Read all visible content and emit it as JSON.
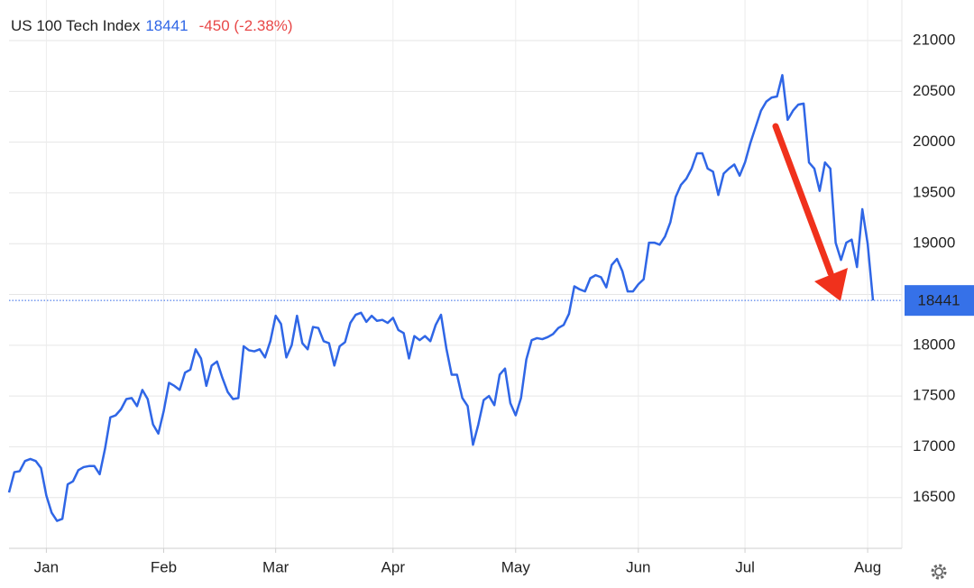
{
  "chart_data": {
    "type": "line",
    "title": "US 100 Tech Index",
    "price": "18441",
    "change": "-450 (-2.38%)",
    "categories": [
      null,
      null,
      null,
      null,
      null,
      null,
      null,
      "Jan",
      null,
      null,
      null,
      null,
      null,
      null,
      null,
      null,
      null,
      null,
      null,
      null,
      null,
      null,
      null,
      null,
      null,
      null,
      null,
      null,
      null,
      "Feb",
      null,
      null,
      null,
      null,
      null,
      null,
      null,
      null,
      null,
      null,
      null,
      null,
      null,
      null,
      null,
      null,
      null,
      null,
      null,
      null,
      "Mar",
      null,
      null,
      null,
      null,
      null,
      null,
      null,
      null,
      null,
      null,
      null,
      null,
      null,
      null,
      null,
      null,
      null,
      null,
      null,
      null,
      null,
      "Apr",
      null,
      null,
      null,
      null,
      null,
      null,
      null,
      null,
      null,
      null,
      null,
      null,
      null,
      null,
      null,
      null,
      null,
      null,
      null,
      null,
      null,
      null,
      "May",
      null,
      null,
      null,
      null,
      null,
      null,
      null,
      null,
      null,
      null,
      null,
      null,
      null,
      null,
      null,
      null,
      null,
      null,
      null,
      null,
      null,
      null,
      "Jun",
      null,
      null,
      null,
      null,
      null,
      null,
      null,
      null,
      null,
      null,
      null,
      null,
      null,
      null,
      null,
      null,
      null,
      null,
      null,
      "Jul",
      null,
      null,
      null,
      null,
      null,
      null,
      null,
      null,
      null,
      null,
      null,
      null,
      null,
      null,
      null,
      null,
      null,
      null,
      null,
      null,
      null,
      null,
      "Aug",
      null
    ],
    "series": [
      {
        "name": "US 100 Tech Index",
        "color": "#2f66e6",
        "values": [
          16550,
          16750,
          16760,
          16860,
          16880,
          16860,
          16790,
          16520,
          16350,
          16270,
          16290,
          16630,
          16660,
          16770,
          16800,
          16810,
          16810,
          16730,
          16980,
          17290,
          17310,
          17370,
          17470,
          17480,
          17400,
          17560,
          17470,
          17220,
          17130,
          17350,
          17630,
          17600,
          17560,
          17730,
          17760,
          17960,
          17870,
          17600,
          17800,
          17840,
          17680,
          17540,
          17470,
          17480,
          17990,
          17950,
          17940,
          17960,
          17880,
          18040,
          18290,
          18210,
          17880,
          18000,
          18290,
          18020,
          17960,
          18180,
          18170,
          18040,
          18020,
          17800,
          17990,
          18030,
          18220,
          18300,
          18320,
          18230,
          18290,
          18240,
          18250,
          18220,
          18270,
          18150,
          18120,
          17870,
          18090,
          18050,
          18090,
          18040,
          18200,
          18300,
          17970,
          17710,
          17710,
          17480,
          17400,
          17020,
          17220,
          17460,
          17500,
          17410,
          17710,
          17770,
          17430,
          17310,
          17480,
          17860,
          18050,
          18070,
          18060,
          18080,
          18110,
          18170,
          18200,
          18310,
          18580,
          18550,
          18530,
          18660,
          18690,
          18670,
          18570,
          18790,
          18850,
          18730,
          18530,
          18530,
          18600,
          18650,
          19010,
          19010,
          18990,
          19070,
          19210,
          19460,
          19580,
          19640,
          19740,
          19890,
          19890,
          19740,
          19710,
          19480,
          19690,
          19740,
          19780,
          19670,
          19800,
          19990,
          20150,
          20310,
          20400,
          20440,
          20450,
          20660,
          20220,
          20310,
          20370,
          20380,
          19800,
          19740,
          19520,
          19800,
          19740,
          19010,
          18840,
          19010,
          19040,
          18770,
          19340,
          19000,
          18441
        ]
      }
    ],
    "ylim": [
      16000,
      21400
    ],
    "yticks": [
      16500,
      17000,
      17500,
      18000,
      18500,
      19000,
      19500,
      20000,
      20500,
      21000
    ],
    "grid": true
  }
}
